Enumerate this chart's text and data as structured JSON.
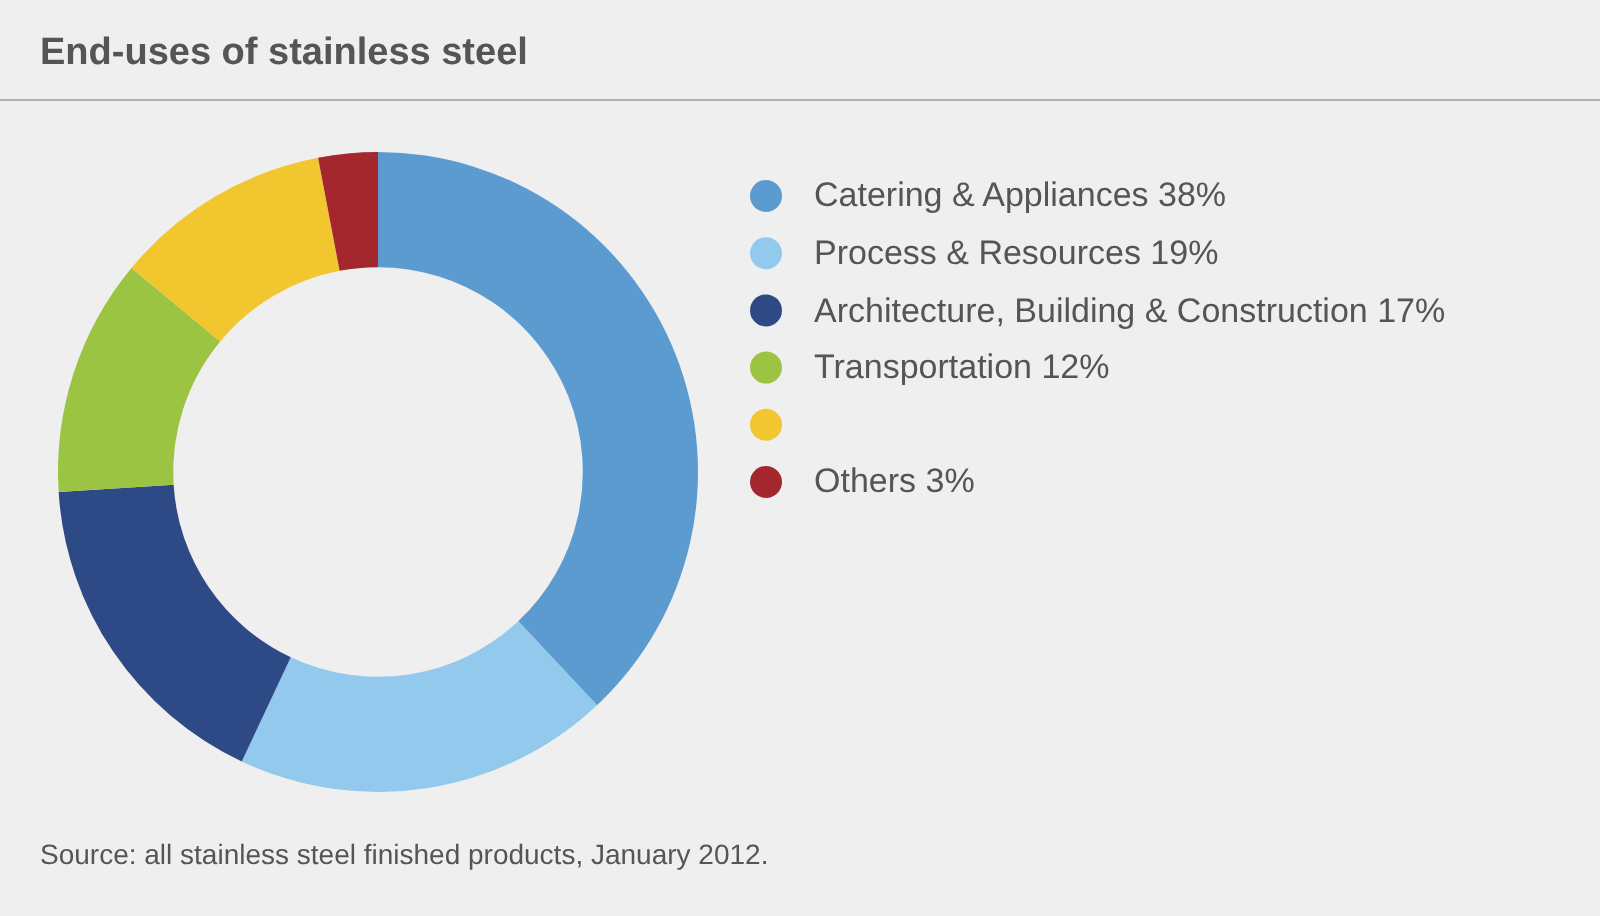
{
  "chart_data": {
    "type": "donut",
    "title": "End-uses of stainless steel",
    "categories": [
      "Catering & Appliances 38%",
      "Process & Resources 19%",
      "Architecture, Building & Construction 17%",
      "Transportation 12%",
      null,
      "Others 3%"
    ],
    "values": [
      38,
      19,
      17,
      12,
      11,
      3
    ],
    "colors": [
      "#5b9bd0",
      "#92c9ec",
      "#2e4a86",
      "#9cc443",
      "#f2c62f",
      "#a3272c"
    ],
    "legend": "right",
    "annotations": [
      "Source: all stainless steel finished products, January 2012."
    ]
  }
}
